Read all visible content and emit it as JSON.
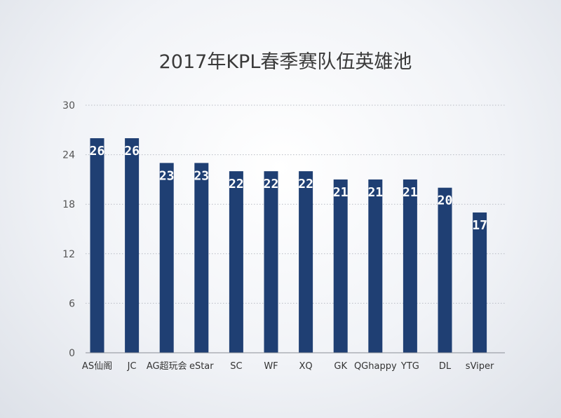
{
  "chart_data": {
    "type": "bar",
    "title": "2017年KPL春季赛队伍英雄池",
    "categories": [
      "AS仙阁",
      "JC",
      "AG超玩会",
      "eStar",
      "SC",
      "WF",
      "XQ",
      "GK",
      "QGhappy",
      "YTG",
      "DL",
      "sViper"
    ],
    "values": [
      26,
      26,
      23,
      23,
      22,
      22,
      22,
      21,
      21,
      21,
      20,
      17
    ],
    "data_labels": [
      "26",
      "26",
      "23",
      "23",
      "22",
      "22",
      "22",
      "21",
      "21",
      "21",
      "20",
      "17"
    ],
    "ylim": [
      0,
      30
    ],
    "yticks": [
      0,
      6,
      12,
      18,
      24,
      30
    ],
    "ytick_labels": [
      "0",
      "6",
      "12",
      "18",
      "24",
      "30"
    ],
    "grid": true,
    "legend": "none",
    "bar_color": "#1f3f73"
  }
}
